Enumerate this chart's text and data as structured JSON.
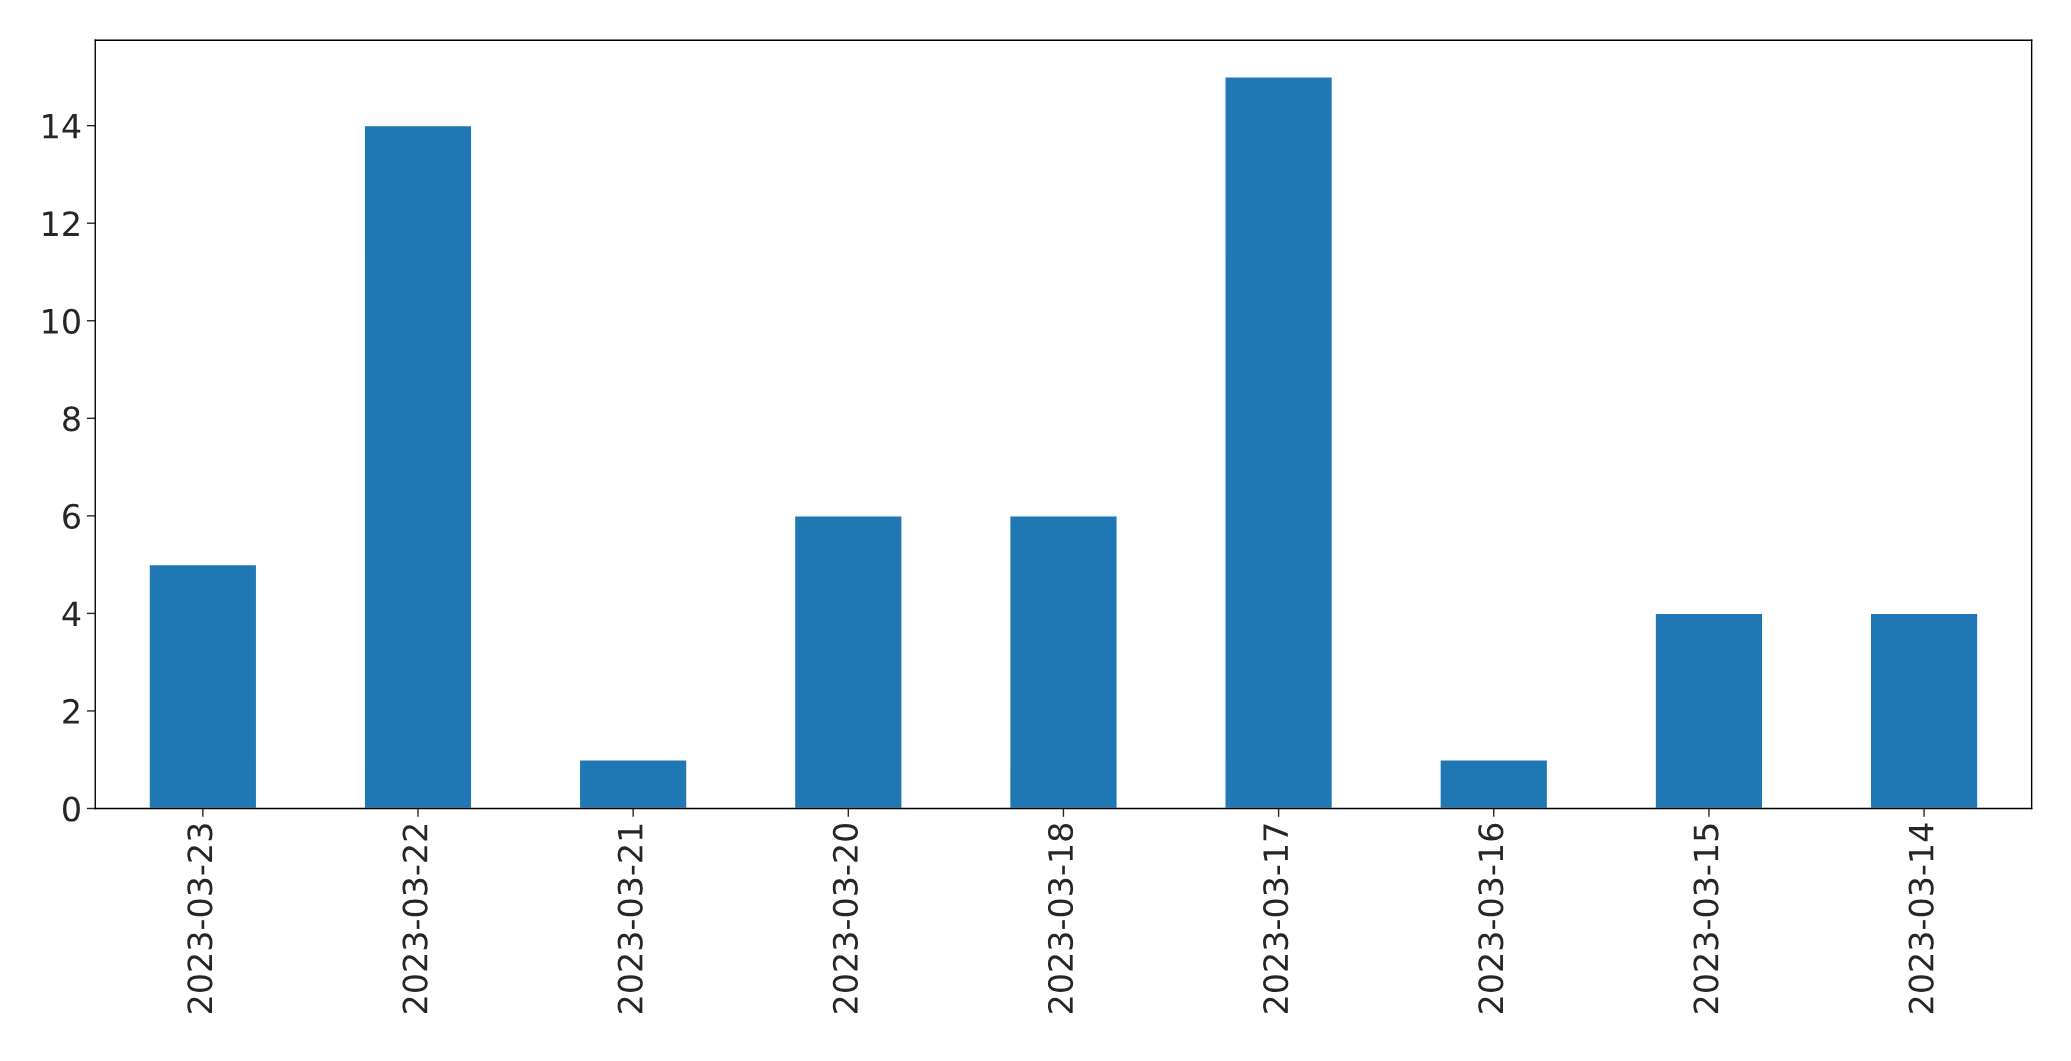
{
  "chart_data": {
    "type": "bar",
    "categories": [
      "2023-03-23",
      "2023-03-22",
      "2023-03-21",
      "2023-03-20",
      "2023-03-18",
      "2023-03-17",
      "2023-03-16",
      "2023-03-15",
      "2023-03-14"
    ],
    "values": [
      5,
      14,
      1,
      6,
      6,
      15,
      1,
      4,
      4
    ],
    "color": "#1f77b4",
    "ylim": [
      0,
      15.75
    ],
    "yticks": [
      0,
      2,
      4,
      6,
      8,
      10,
      12,
      14
    ],
    "grid": false,
    "legend": false
  }
}
